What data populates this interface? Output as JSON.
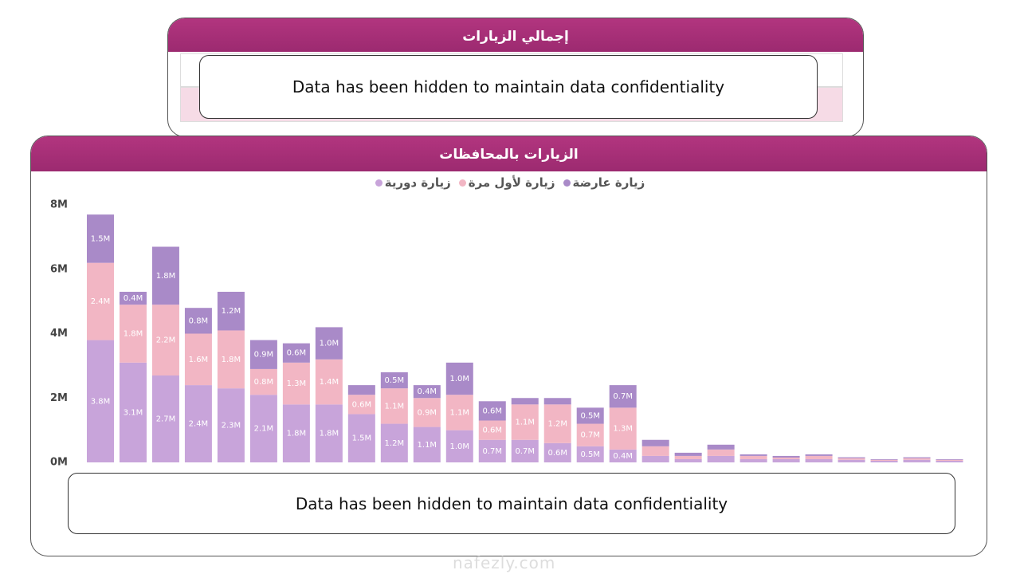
{
  "summary_panel": {
    "title": "إجمالي الزيارات",
    "notice": "Data has been hidden to maintain data confidentiality"
  },
  "chart_notice": "Data has been hidden to maintain data confidentiality",
  "watermark": "nafezly.com",
  "chart_data": {
    "type": "stacked_bar",
    "title": "الزيارات بالمحافظات",
    "categories": [
      null,
      null,
      null,
      null,
      null,
      null,
      null,
      null,
      null,
      null,
      null,
      null,
      null,
      null,
      null,
      null,
      null,
      null,
      null,
      null,
      null,
      null,
      null,
      null,
      null,
      null,
      null
    ],
    "series": [
      {
        "name": "زيارة دورية",
        "color": "#c8a4da",
        "values": [
          3.8,
          3.1,
          2.7,
          2.4,
          2.3,
          2.1,
          1.8,
          1.8,
          1.5,
          1.2,
          1.1,
          1.0,
          0.7,
          0.7,
          0.6,
          0.5,
          0.4,
          0.2,
          0.1,
          0.2,
          0.1,
          0.1,
          0.1,
          0.08,
          0.05,
          0.08,
          0.05
        ],
        "value_labels": [
          "3.8M",
          "3.1M",
          "2.7M",
          "2.4M",
          "2.3M",
          "2.1M",
          "1.8M",
          "1.8M",
          "1.5M",
          "1.2M",
          "1.1M",
          "1.0M",
          "0.7M",
          "0.7M",
          "0.6M",
          "0.5M",
          "0.4M",
          null,
          null,
          null,
          null,
          null,
          null,
          null,
          null,
          null,
          null
        ]
      },
      {
        "name": "زيارة لأول مرة",
        "color": "#f2b6c4",
        "values": [
          2.4,
          1.8,
          2.2,
          1.6,
          1.8,
          0.8,
          1.3,
          1.4,
          0.6,
          1.1,
          0.9,
          1.1,
          0.6,
          1.1,
          1.2,
          0.7,
          1.3,
          0.3,
          0.1,
          0.2,
          0.1,
          0.05,
          0.1,
          0.05,
          0.03,
          0.05,
          0.03
        ],
        "value_labels": [
          "2.4M",
          "1.8M",
          "2.2M",
          "1.6M",
          "1.8M",
          "0.8M",
          "1.3M",
          "1.4M",
          "0.6M",
          "1.1M",
          "0.9M",
          "1.1M",
          "0.6M",
          "1.1M",
          "1.2M",
          "0.7M",
          "1.3M",
          null,
          null,
          null,
          null,
          null,
          null,
          null,
          null,
          null,
          null
        ]
      },
      {
        "name": "زيارة عارضة",
        "color": "#a98ac8",
        "values": [
          1.5,
          0.4,
          1.8,
          0.8,
          1.2,
          0.9,
          0.6,
          1.0,
          0.3,
          0.5,
          0.4,
          1.0,
          0.6,
          0.2,
          0.2,
          0.5,
          0.7,
          0.2,
          0.1,
          0.15,
          0.05,
          0.05,
          0.05,
          0.03,
          0.02,
          0.03,
          0.02
        ],
        "value_labels": [
          "1.5M",
          "0.4M",
          "1.8M",
          "0.8M",
          "1.2M",
          "0.9M",
          "0.6M",
          "1.0M",
          null,
          "0.5M",
          "0.4M",
          "1.0M",
          "0.6M",
          null,
          null,
          "0.5M",
          "0.7M",
          null,
          null,
          null,
          null,
          null,
          null,
          null,
          null,
          null,
          null
        ]
      }
    ],
    "ylim": [
      0,
      8
    ],
    "yticks": [
      {
        "value": 0,
        "label": "0M"
      },
      {
        "value": 2,
        "label": "2M"
      },
      {
        "value": 4,
        "label": "4M"
      },
      {
        "value": 6,
        "label": "6M"
      },
      {
        "value": 8,
        "label": "8M"
      }
    ],
    "grid": false
  }
}
